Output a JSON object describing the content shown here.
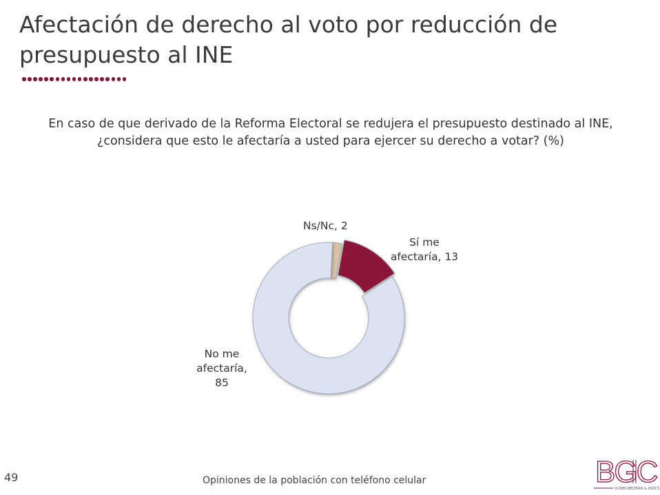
{
  "title": "Afectación de derecho al voto por reducción de presupuesto al INE",
  "question": "En caso de que derivado de la Reforma Electoral se redujera el presupuesto destinado al INE, ¿considera que esto le afectaría a usted para ejercer su derecho a votar? (%)",
  "chart_data": {
    "type": "pie",
    "donut": true,
    "categories": [
      "Ns/Nc",
      "Sí me afectaría",
      "No me afectaría"
    ],
    "values": [
      2,
      13,
      85
    ],
    "labels": [
      "Ns/Nc, 2",
      "Sí me afectaría, 13",
      "No me afectaría, 85"
    ],
    "colors": [
      "#d9c2a7",
      "#8b1538",
      "#dde2f3"
    ]
  },
  "page_number": "49",
  "footer": "Opiniones de la población con teléfono celular",
  "logo": {
    "text": "BGC",
    "subtext": "ULISES BELTRÁN & ASOCS.",
    "color": "#8b1538"
  }
}
